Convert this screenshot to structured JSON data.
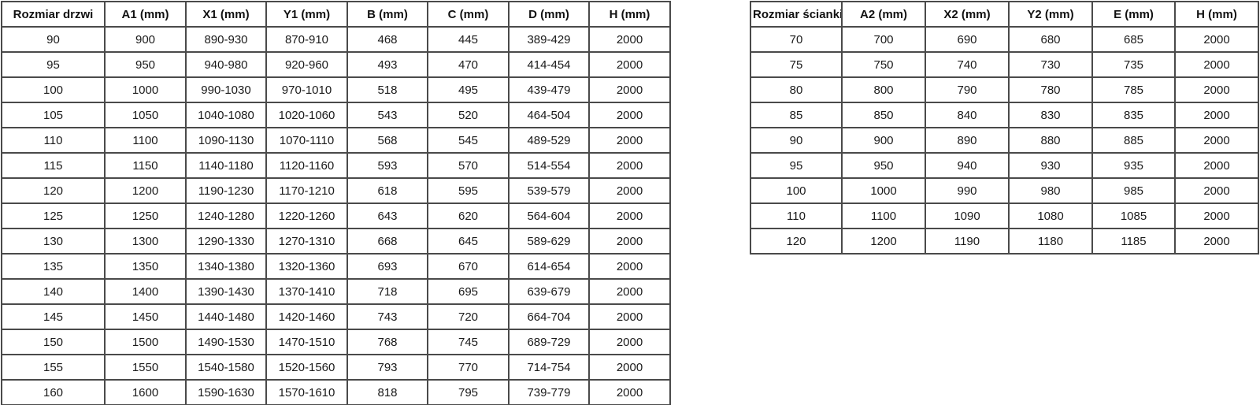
{
  "door_table": {
    "headers": [
      "Rozmiar drzwi",
      "A1 (mm)",
      "X1 (mm)",
      "Y1 (mm)",
      "B (mm)",
      "C (mm)",
      "D (mm)",
      "H (mm)"
    ],
    "rows": [
      [
        "90",
        "900",
        "890-930",
        "870-910",
        "468",
        "445",
        "389-429",
        "2000"
      ],
      [
        "95",
        "950",
        "940-980",
        "920-960",
        "493",
        "470",
        "414-454",
        "2000"
      ],
      [
        "100",
        "1000",
        "990-1030",
        "970-1010",
        "518",
        "495",
        "439-479",
        "2000"
      ],
      [
        "105",
        "1050",
        "1040-1080",
        "1020-1060",
        "543",
        "520",
        "464-504",
        "2000"
      ],
      [
        "110",
        "1100",
        "1090-1130",
        "1070-1110",
        "568",
        "545",
        "489-529",
        "2000"
      ],
      [
        "115",
        "1150",
        "1140-1180",
        "1120-1160",
        "593",
        "570",
        "514-554",
        "2000"
      ],
      [
        "120",
        "1200",
        "1190-1230",
        "1170-1210",
        "618",
        "595",
        "539-579",
        "2000"
      ],
      [
        "125",
        "1250",
        "1240-1280",
        "1220-1260",
        "643",
        "620",
        "564-604",
        "2000"
      ],
      [
        "130",
        "1300",
        "1290-1330",
        "1270-1310",
        "668",
        "645",
        "589-629",
        "2000"
      ],
      [
        "135",
        "1350",
        "1340-1380",
        "1320-1360",
        "693",
        "670",
        "614-654",
        "2000"
      ],
      [
        "140",
        "1400",
        "1390-1430",
        "1370-1410",
        "718",
        "695",
        "639-679",
        "2000"
      ],
      [
        "145",
        "1450",
        "1440-1480",
        "1420-1460",
        "743",
        "720",
        "664-704",
        "2000"
      ],
      [
        "150",
        "1500",
        "1490-1530",
        "1470-1510",
        "768",
        "745",
        "689-729",
        "2000"
      ],
      [
        "155",
        "1550",
        "1540-1580",
        "1520-1560",
        "793",
        "770",
        "714-754",
        "2000"
      ],
      [
        "160",
        "1600",
        "1590-1630",
        "1570-1610",
        "818",
        "795",
        "739-779",
        "2000"
      ]
    ]
  },
  "wall_table": {
    "headers": [
      "Rozmiar ścianki",
      "A2 (mm)",
      "X2 (mm)",
      "Y2 (mm)",
      "E (mm)",
      "H (mm)"
    ],
    "rows": [
      [
        "70",
        "700",
        "690",
        "680",
        "685",
        "2000"
      ],
      [
        "75",
        "750",
        "740",
        "730",
        "735",
        "2000"
      ],
      [
        "80",
        "800",
        "790",
        "780",
        "785",
        "2000"
      ],
      [
        "85",
        "850",
        "840",
        "830",
        "835",
        "2000"
      ],
      [
        "90",
        "900",
        "890",
        "880",
        "885",
        "2000"
      ],
      [
        "95",
        "950",
        "940",
        "930",
        "935",
        "2000"
      ],
      [
        "100",
        "1000",
        "990",
        "980",
        "985",
        "2000"
      ],
      [
        "110",
        "1100",
        "1090",
        "1080",
        "1085",
        "2000"
      ],
      [
        "120",
        "1200",
        "1190",
        "1180",
        "1185",
        "2000"
      ]
    ]
  },
  "colors": {
    "grid_border": "#4a4a4a",
    "text": "#1a1a1a",
    "background": "#ffffff"
  }
}
